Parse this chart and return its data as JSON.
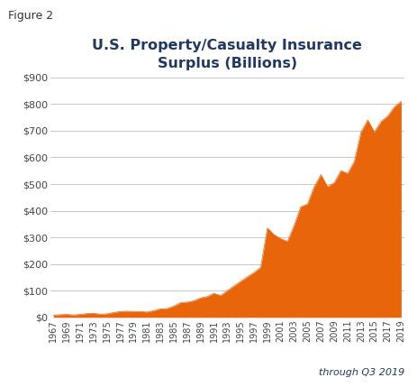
{
  "title": "U.S. Property/Casualty Insurance\nSurplus (Billions)",
  "figure_label": "Figure 2",
  "annotation": "through Q3 2019",
  "fill_color": "#E8650A",
  "background_color": "#FFFFFF",
  "grid_color": "#C8C8C8",
  "title_color": "#1F3864",
  "ylim": [
    0,
    900
  ],
  "yticks": [
    0,
    100,
    200,
    300,
    400,
    500,
    600,
    700,
    800,
    900
  ],
  "years": [
    1967,
    1968,
    1969,
    1970,
    1971,
    1972,
    1973,
    1974,
    1975,
    1976,
    1977,
    1978,
    1979,
    1980,
    1981,
    1982,
    1983,
    1984,
    1985,
    1986,
    1987,
    1988,
    1989,
    1990,
    1991,
    1992,
    1993,
    1994,
    1995,
    1996,
    1997,
    1998,
    1999,
    2000,
    2001,
    2002,
    2003,
    2004,
    2005,
    2006,
    2007,
    2008,
    2009,
    2010,
    2011,
    2012,
    2013,
    2014,
    2015,
    2016,
    2017,
    2018,
    2019
  ],
  "values": [
    8,
    10,
    11,
    9,
    11,
    14,
    15,
    12,
    13,
    18,
    22,
    23,
    22,
    22,
    20,
    25,
    32,
    33,
    42,
    55,
    57,
    62,
    73,
    78,
    90,
    82,
    100,
    118,
    135,
    152,
    168,
    188,
    335,
    310,
    295,
    285,
    345,
    415,
    425,
    490,
    535,
    490,
    505,
    550,
    540,
    585,
    695,
    740,
    695,
    735,
    755,
    790,
    810
  ]
}
